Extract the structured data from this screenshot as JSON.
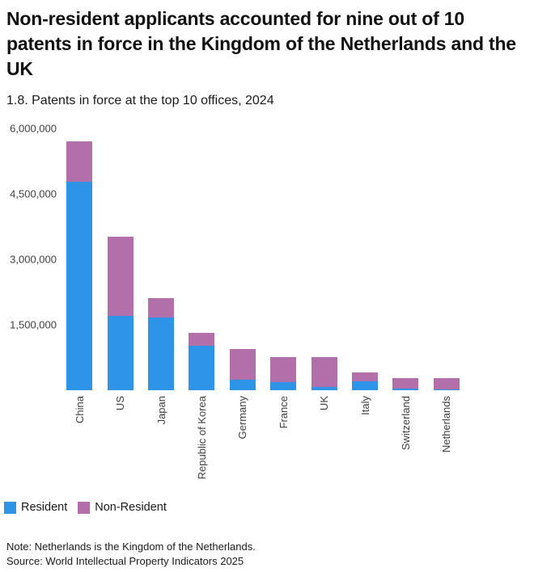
{
  "header": {
    "title": "Non-resident applicants accounted for nine out of 10 patents in force in the Kingdom of the Netherlands and the UK",
    "subtitle": "1.8. Patents in force at the top 10 offices, 2024"
  },
  "chart_data": {
    "type": "bar",
    "stacked": true,
    "title": "1.8. Patents in force at the top 10 offices, 2024",
    "categories": [
      "China",
      "US",
      "Japan",
      "Republic of Korea",
      "Germany",
      "France",
      "UK",
      "Italy",
      "Switzerland",
      "Netherlands"
    ],
    "series": [
      {
        "name": "Resident",
        "color": "#2E94E8",
        "values": [
          4780000,
          1700000,
          1665000,
          1020000,
          250000,
          190000,
          75000,
          210000,
          45000,
          25000
        ]
      },
      {
        "name": "Non-Resident",
        "color": "#B36FAA",
        "values": [
          930000,
          1815000,
          445000,
          295000,
          700000,
          575000,
          680000,
          200000,
          235000,
          245000
        ]
      }
    ],
    "xlabel": "",
    "ylabel": "",
    "ylim": [
      0,
      6000000
    ],
    "yticks": [
      {
        "value": 1500000,
        "label": "1,500,000"
      },
      {
        "value": 3000000,
        "label": "3,000,000"
      },
      {
        "value": 4500000,
        "label": "4,500,000"
      },
      {
        "value": 6000000,
        "label": "6,000,000"
      }
    ],
    "grid": false,
    "legend_position": "bottom-left"
  },
  "footer": {
    "note": "Note: Netherlands is the Kingdom of the Netherlands.",
    "source": "Source: World Intellectual Property Indicators 2025"
  }
}
